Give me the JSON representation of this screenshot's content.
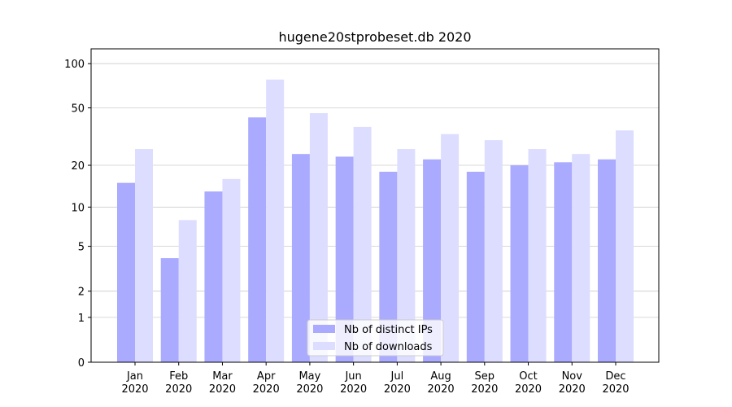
{
  "chart_data": {
    "type": "bar",
    "title": "hugene20stprobeset.db 2020",
    "categories": [
      "Jan\n2020",
      "Feb\n2020",
      "Mar\n2020",
      "Apr\n2020",
      "May\n2020",
      "Jun\n2020",
      "Jul\n2020",
      "Aug\n2020",
      "Sep\n2020",
      "Oct\n2020",
      "Nov\n2020",
      "Dec\n2020"
    ],
    "series": [
      {
        "name": "Nb of distinct IPs",
        "color": "#aaaaff",
        "values": [
          15,
          4,
          13,
          43,
          24,
          23,
          18,
          22,
          18,
          20,
          21,
          22
        ]
      },
      {
        "name": "Nb of downloads",
        "color": "#ddddff",
        "values": [
          26,
          8,
          16,
          78,
          46,
          37,
          26,
          33,
          30,
          26,
          24,
          35
        ]
      }
    ],
    "yscale": "log1p",
    "ylim": [
      0,
      126
    ],
    "yticks": [
      0,
      1,
      2,
      5,
      10,
      20,
      50,
      100
    ],
    "grid": true,
    "legend": "lower center"
  }
}
